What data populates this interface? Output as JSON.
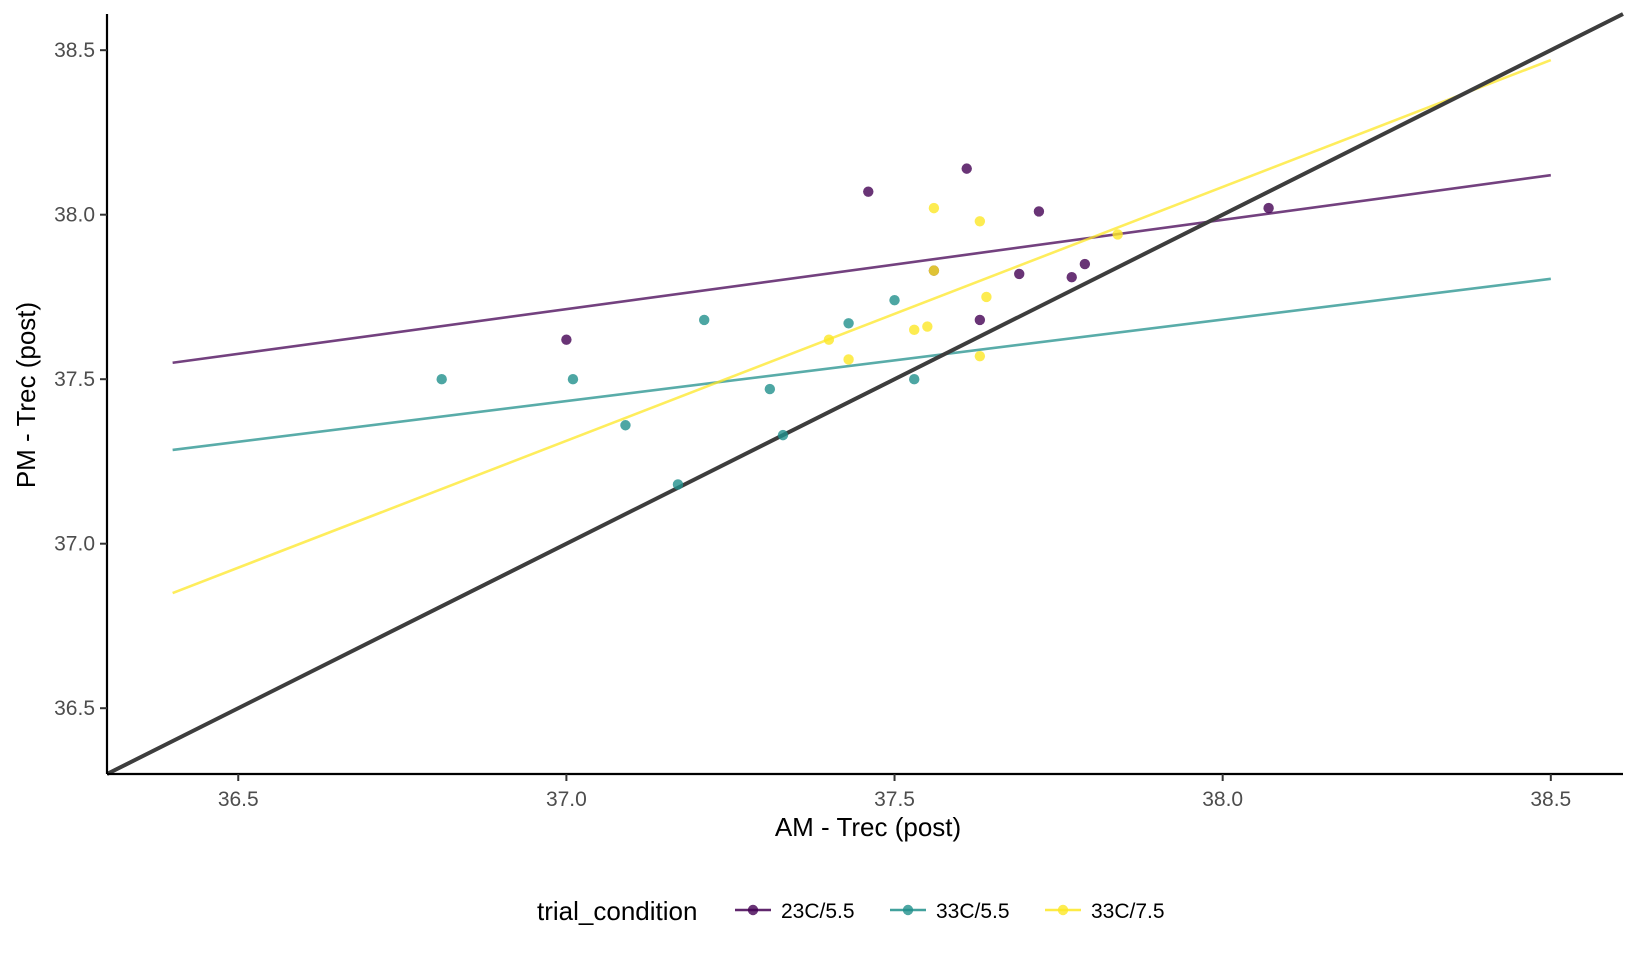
{
  "chart_data": {
    "type": "scatter",
    "title": "",
    "xlabel": "AM - Trec (post)",
    "ylabel": "PM - Trec (post)",
    "xlim": [
      36.3,
      38.61
    ],
    "ylim": [
      36.3,
      38.61
    ],
    "x_ticks": [
      "36.5",
      "37.0",
      "37.5",
      "38.0",
      "38.5"
    ],
    "y_ticks": [
      "36.5",
      "37.0",
      "37.5",
      "38.0",
      "38.5"
    ],
    "grid": false,
    "legend": {
      "title": "trial_condition",
      "position": "bottom"
    },
    "series": [
      {
        "name": "23C/5.5",
        "color": "#440154",
        "points": [
          [
            37.0,
            37.62
          ],
          [
            37.46,
            38.07
          ],
          [
            37.56,
            37.83
          ],
          [
            37.61,
            38.14
          ],
          [
            37.63,
            37.68
          ],
          [
            37.69,
            37.82
          ],
          [
            37.72,
            38.01
          ],
          [
            37.77,
            37.81
          ],
          [
            37.79,
            37.85
          ],
          [
            38.07,
            38.02
          ]
        ],
        "fit": [
          [
            36.4,
            37.55
          ],
          [
            38.5,
            38.12
          ]
        ]
      },
      {
        "name": "33C/5.5",
        "color": "#21908C",
        "points": [
          [
            36.81,
            37.5
          ],
          [
            37.01,
            37.5
          ],
          [
            37.09,
            37.36
          ],
          [
            37.17,
            37.18
          ],
          [
            37.21,
            37.68
          ],
          [
            37.31,
            37.47
          ],
          [
            37.33,
            37.33
          ],
          [
            37.43,
            37.67
          ],
          [
            37.5,
            37.74
          ],
          [
            37.53,
            37.5
          ]
        ],
        "fit": [
          [
            36.4,
            37.285
          ],
          [
            38.5,
            37.805
          ]
        ]
      },
      {
        "name": "33C/7.5",
        "color": "#FDE725",
        "points": [
          [
            37.4,
            37.62
          ],
          [
            37.43,
            37.56
          ],
          [
            37.53,
            37.65
          ],
          [
            37.55,
            37.66
          ],
          [
            37.56,
            38.02
          ],
          [
            37.56,
            37.83
          ],
          [
            37.63,
            37.98
          ],
          [
            37.63,
            37.57
          ],
          [
            37.64,
            37.75
          ],
          [
            37.84,
            37.94
          ]
        ],
        "fit": [
          [
            36.4,
            36.85
          ],
          [
            38.5,
            38.47
          ]
        ]
      }
    ],
    "reference_line": {
      "label": "y = x",
      "color": "#3d3d3d"
    }
  }
}
